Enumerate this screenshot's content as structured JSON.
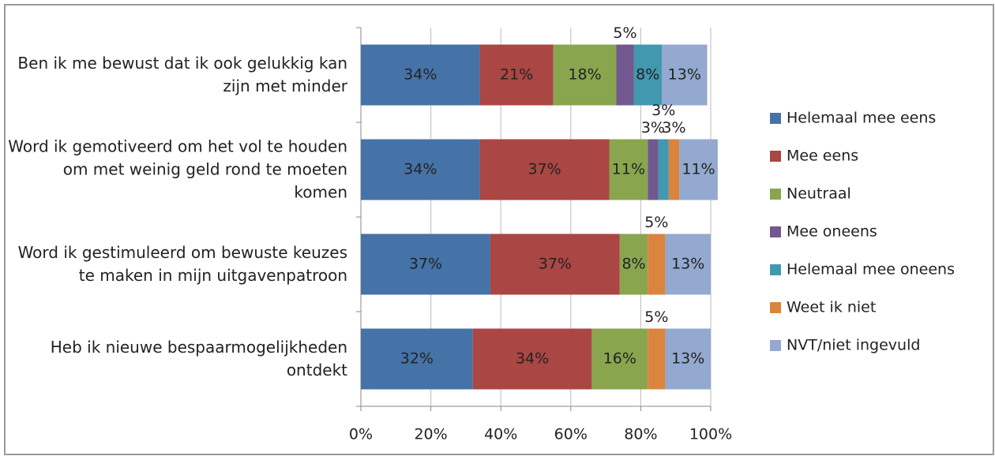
{
  "chart_data": {
    "type": "stacked_bar_horizontal",
    "categories": [
      "Ben ik me bewust dat ik ook gelukkig kan zijn met minder",
      "Word ik gemotiveerd om het vol te houden om met weinig geld rond te moeten komen",
      "Word ik gestimuleerd om bewuste keuzes te maken in mijn uitgavenpatroon",
      "Heb ik nieuwe bespaarmogelijkheden ontdekt"
    ],
    "series": [
      {
        "name": "Helemaal mee eens",
        "color": "#4572a7",
        "values": [
          34,
          34,
          37,
          32
        ],
        "value_labels": [
          "34%",
          "34%",
          "37%",
          "32%"
        ]
      },
      {
        "name": "Mee eens",
        "color": "#aa4643",
        "values": [
          21,
          37,
          37,
          34
        ],
        "value_labels": [
          "21%",
          "37%",
          "37%",
          "34%"
        ]
      },
      {
        "name": "Neutraal",
        "color": "#89a54e",
        "values": [
          18,
          11,
          8,
          16
        ],
        "value_labels": [
          "18%",
          "11%",
          "8%",
          "16%"
        ]
      },
      {
        "name": "Mee oneens",
        "color": "#71588f",
        "values": [
          5,
          3,
          null,
          null
        ],
        "value_labels": [
          "5%",
          "3%",
          null,
          null
        ]
      },
      {
        "name": "Helemaal mee oneens",
        "color": "#4198af",
        "values": [
          8,
          3,
          null,
          null
        ],
        "value_labels": [
          "8%",
          "3%",
          null,
          null
        ]
      },
      {
        "name": "Weet ik niet",
        "color": "#db843d",
        "values": [
          null,
          3,
          5,
          5
        ],
        "value_labels": [
          null,
          "3%",
          "5%",
          "5%"
        ]
      },
      {
        "name": "NVT/niet ingevuld",
        "color": "#93a9cf",
        "values": [
          13,
          11,
          13,
          13
        ],
        "value_labels": [
          "13%",
          "11%",
          "13%",
          "13%"
        ]
      }
    ],
    "xlim": [
      0,
      100
    ],
    "xticks": [
      {
        "value": 0,
        "label": "0%"
      },
      {
        "value": 20,
        "label": "20%"
      },
      {
        "value": 40,
        "label": "40%"
      },
      {
        "value": 60,
        "label": "60%"
      },
      {
        "value": 80,
        "label": "80%"
      },
      {
        "value": 100,
        "label": "100%"
      }
    ],
    "grid": true,
    "legend": "right"
  }
}
